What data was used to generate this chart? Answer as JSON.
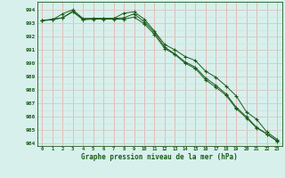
{
  "title": "Graphe pression niveau de la mer (hPa)",
  "bg_color": "#d8f0ec",
  "plot_bg_color": "#d8f0ec",
  "grid_major_color": "#e8b0b0",
  "grid_minor_color": "#c8e0dc",
  "line_color": "#1a5c1a",
  "x_ticks": [
    0,
    1,
    2,
    3,
    4,
    5,
    6,
    7,
    8,
    9,
    10,
    11,
    12,
    13,
    14,
    15,
    16,
    17,
    18,
    19,
    20,
    21,
    22,
    23
  ],
  "ylim": [
    983.8,
    994.6
  ],
  "yticks": [
    984,
    985,
    986,
    987,
    988,
    989,
    990,
    991,
    992,
    993,
    994
  ],
  "line1": [
    993.2,
    993.3,
    993.4,
    993.9,
    993.3,
    993.35,
    993.35,
    993.35,
    993.4,
    993.7,
    993.1,
    992.3,
    991.2,
    990.7,
    990.1,
    989.7,
    988.9,
    988.35,
    987.7,
    986.7,
    986.0,
    985.2,
    984.7,
    984.2
  ],
  "line2": [
    993.2,
    993.25,
    993.7,
    994.0,
    993.35,
    993.35,
    993.35,
    993.35,
    993.75,
    993.85,
    993.3,
    992.4,
    991.4,
    991.0,
    990.5,
    990.2,
    989.4,
    988.95,
    988.3,
    987.55,
    986.35,
    985.8,
    984.85,
    984.3
  ],
  "line3": [
    993.2,
    993.25,
    993.4,
    993.85,
    993.25,
    993.3,
    993.3,
    993.3,
    993.3,
    993.45,
    992.95,
    992.15,
    991.1,
    990.65,
    990.0,
    989.6,
    988.75,
    988.2,
    987.6,
    986.6,
    985.9,
    985.15,
    984.7,
    984.15
  ]
}
